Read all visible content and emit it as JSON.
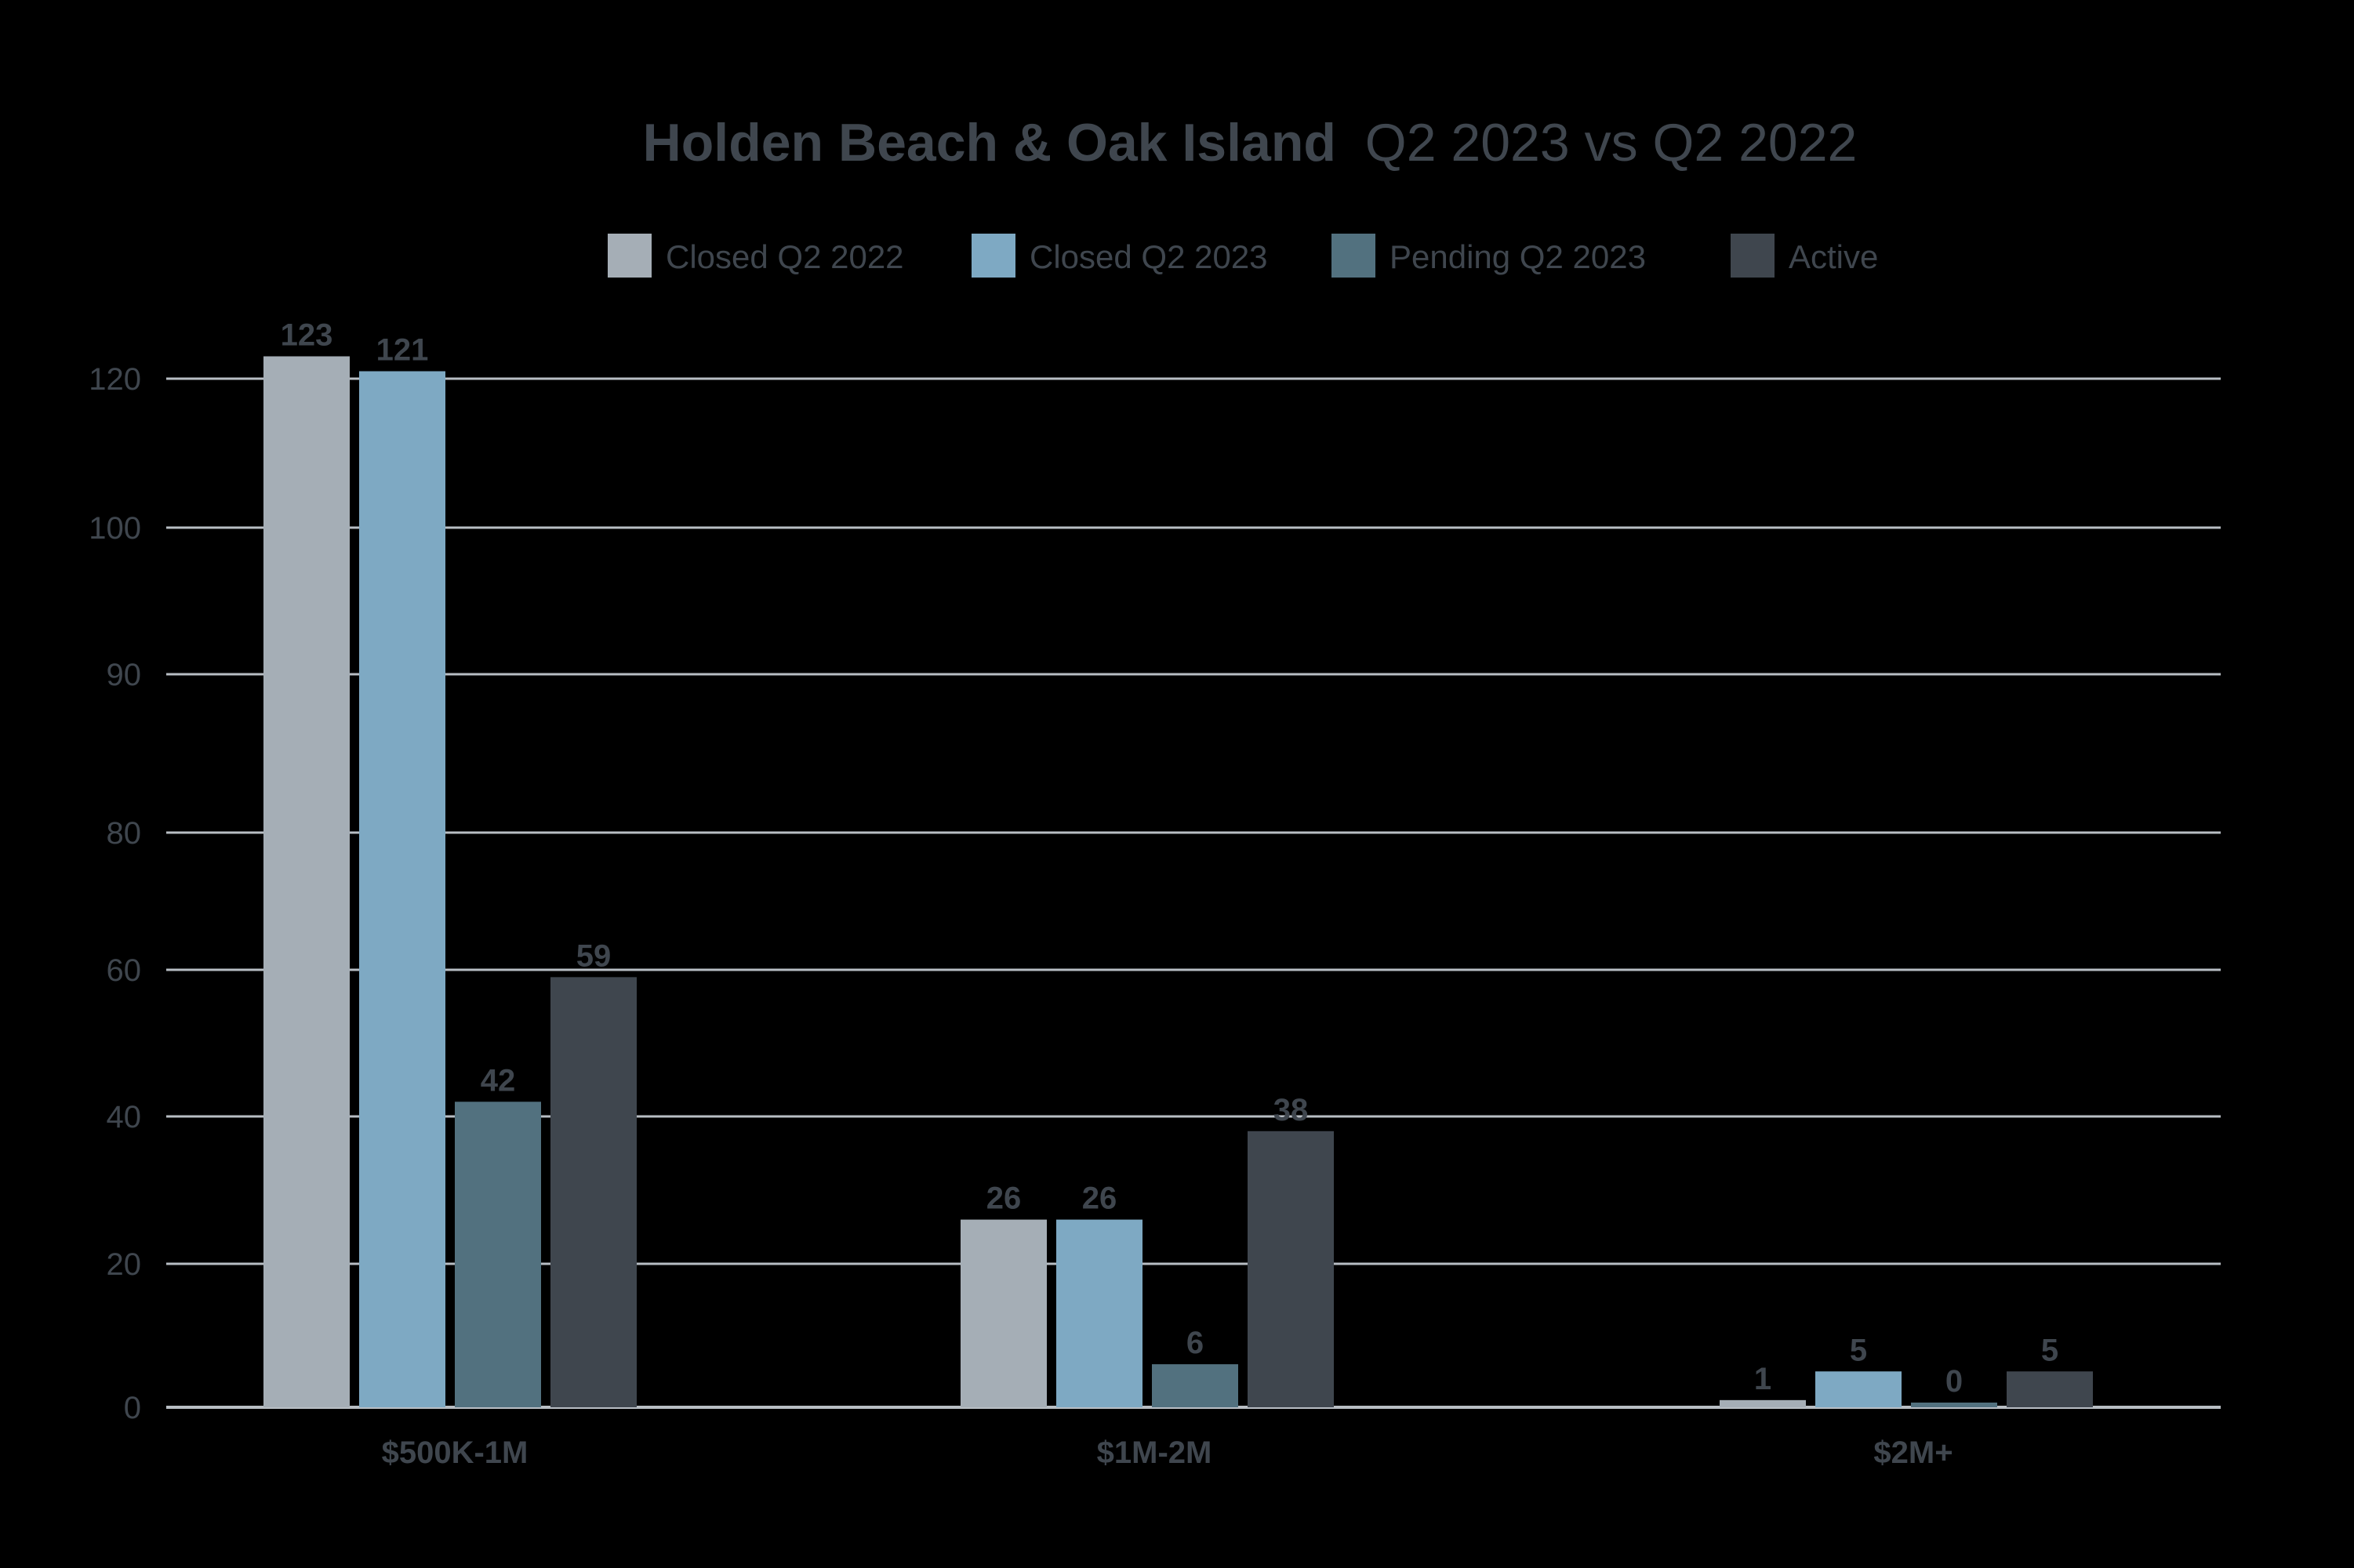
{
  "chart_data": {
    "type": "bar",
    "title_bold": "Holden Beach & Oak Island",
    "title_rest": "Q2 2023 vs Q2 2022",
    "categories": [
      "$500K-1M",
      "$1M-2M",
      "$2M+"
    ],
    "series": [
      {
        "name": "Closed Q2 2022",
        "color": "#a5aeb6",
        "values": [
          123,
          26,
          1
        ]
      },
      {
        "name": "Closed Q2 2023",
        "color": "#7ea9c3",
        "values": [
          121,
          26,
          5
        ]
      },
      {
        "name": "Pending Q2 2023",
        "color": "#52717f",
        "values": [
          42,
          6,
          0
        ]
      },
      {
        "name": "Active",
        "color": "#3f464e",
        "values": [
          59,
          38,
          5
        ]
      }
    ],
    "y_ticks": [
      "0",
      "20",
      "40",
      "60",
      "80",
      "90",
      "100",
      "120"
    ],
    "legend_position": "top",
    "grid": true
  }
}
